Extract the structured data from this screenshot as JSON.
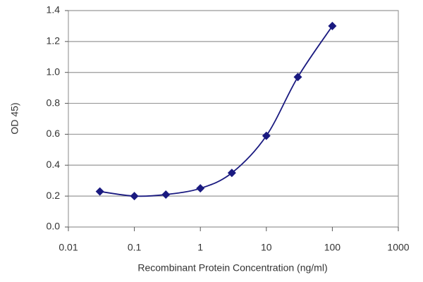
{
  "chart_data": {
    "type": "line",
    "x_label": "Recombinant Protein Concentration (ng/ml)",
    "y_label": "OD 45)",
    "x": [
      0.03,
      0.1,
      0.3,
      1,
      3,
      10,
      30,
      100
    ],
    "series": [
      {
        "color": "#1a1a80",
        "values": [
          0.23,
          0.2,
          0.21,
          0.25,
          0.35,
          0.59,
          0.97,
          1.3
        ]
      }
    ],
    "xscale": "log",
    "xlim": [
      0.01,
      1000
    ],
    "xticks": [
      0.01,
      0.1,
      1,
      10,
      100,
      1000
    ],
    "ylim": [
      0,
      1.4
    ],
    "yticks": [
      {
        "value": 0,
        "label": "0.0"
      },
      {
        "value": 0.2,
        "label": "0.2"
      },
      {
        "value": 0.4,
        "label": "0.4"
      },
      {
        "value": 0.6,
        "label": "0.6"
      },
      {
        "value": 0.8,
        "label": "0.8"
      },
      {
        "value": 1,
        "label": "1.0"
      },
      {
        "value": 1.2,
        "label": "1.2"
      },
      {
        "value": 1.4,
        "label": "1.4"
      }
    ],
    "grid": true
  }
}
